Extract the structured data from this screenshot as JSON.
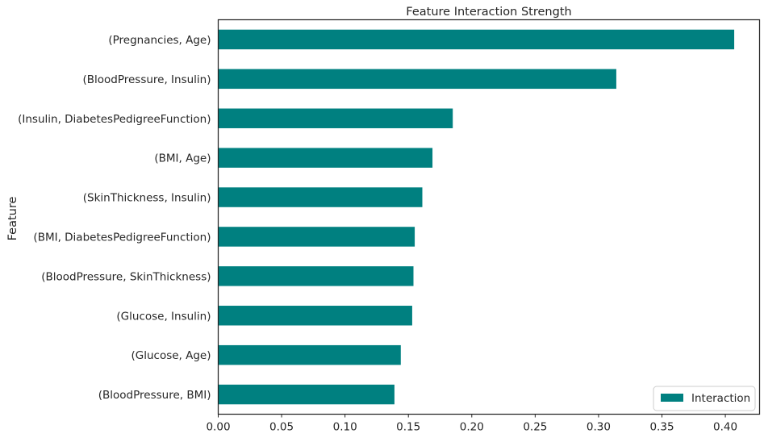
{
  "chart_data": {
    "type": "bar",
    "orientation": "horizontal",
    "title": "Feature Interaction Strength",
    "xlabel": "",
    "ylabel": "Feature",
    "categories": [
      "(Pregnancies, Age)",
      "(BloodPressure, Insulin)",
      "(Insulin, DiabetesPedigreeFunction)",
      "(BMI, Age)",
      "(SkinThickness, Insulin)",
      "(BMI, DiabetesPedigreeFunction)",
      "(BloodPressure, SkinThickness)",
      "(Glucose, Insulin)",
      "(Glucose, Age)",
      "(BloodPressure, BMI)"
    ],
    "series": [
      {
        "name": "Interaction",
        "color": "#008080",
        "values": [
          0.407,
          0.314,
          0.185,
          0.169,
          0.161,
          0.155,
          0.154,
          0.153,
          0.144,
          0.139
        ]
      }
    ],
    "xlim": [
      0,
      0.427
    ],
    "xticks": [
      0.0,
      0.05,
      0.1,
      0.15,
      0.2,
      0.25,
      0.3,
      0.35,
      0.4
    ],
    "xtick_labels": [
      "0.00",
      "0.05",
      "0.10",
      "0.15",
      "0.20",
      "0.25",
      "0.30",
      "0.35",
      "0.40"
    ],
    "grid": false,
    "legend": {
      "placement": "lower-right",
      "entries": [
        "Interaction"
      ]
    }
  }
}
